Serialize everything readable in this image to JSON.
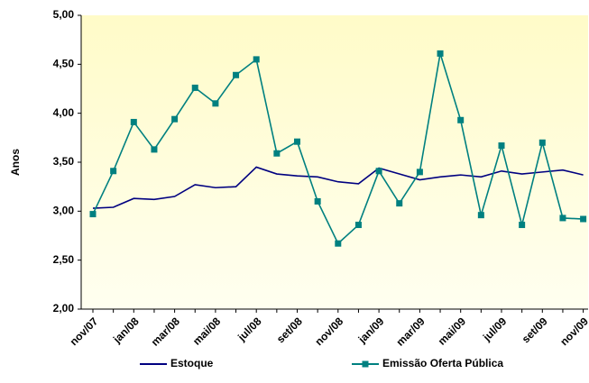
{
  "chart_data": {
    "type": "line",
    "y_label": "Anos",
    "categories": [
      "nov/07",
      null,
      "jan/08",
      null,
      "mar/08",
      null,
      "mai/08",
      null,
      "jul/08",
      null,
      "set/08",
      null,
      "nov/08",
      null,
      "jan/09",
      null,
      "mar/09",
      null,
      "mai/09",
      null,
      "jul/09",
      null,
      "set/09",
      null,
      "nov/09"
    ],
    "series": [
      {
        "name": "Estoque",
        "color": "#000080",
        "marker": false,
        "values": [
          3.03,
          3.04,
          3.13,
          3.12,
          3.15,
          3.27,
          3.24,
          3.25,
          3.45,
          3.38,
          3.36,
          3.35,
          3.3,
          3.28,
          3.44,
          3.38,
          3.32,
          3.35,
          3.37,
          3.35,
          3.41,
          3.38,
          3.4,
          3.42,
          3.37
        ]
      },
      {
        "name": "Emissão Oferta Pública",
        "color": "#008080",
        "marker": true,
        "values": [
          2.97,
          3.41,
          3.91,
          3.63,
          3.94,
          4.26,
          4.1,
          4.39,
          4.55,
          3.59,
          3.71,
          3.1,
          2.67,
          2.86,
          3.41,
          3.08,
          3.4,
          4.61,
          3.93,
          2.96,
          3.67,
          2.86,
          3.7,
          2.93,
          2.92
        ]
      }
    ],
    "ylim": [
      2,
      5
    ],
    "yticks": [
      {
        "value": 2,
        "label": "2,00"
      },
      {
        "value": 2.5,
        "label": "2,50"
      },
      {
        "value": 3,
        "label": "3,00"
      },
      {
        "value": 3.5,
        "label": "3,50"
      },
      {
        "value": 4,
        "label": "4,00"
      },
      {
        "value": 4.5,
        "label": "4,50"
      },
      {
        "value": 5,
        "label": "5,00"
      }
    ],
    "legend": "bottom"
  }
}
